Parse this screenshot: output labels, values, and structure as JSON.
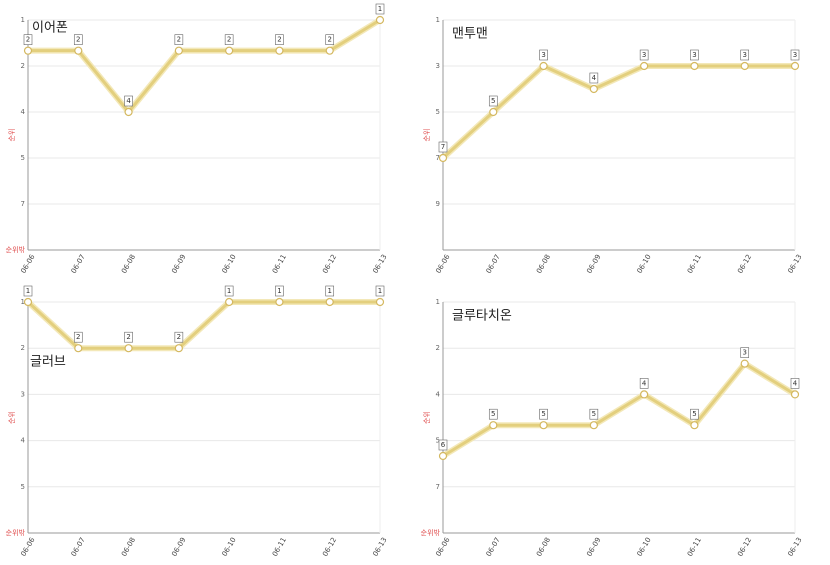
{
  "chart_data": [
    {
      "type": "line",
      "title": "이어폰",
      "ylabel": "순위",
      "y_inverted": true,
      "color": "#e3cf7e",
      "categories": [
        "06-06",
        "06-07",
        "06-08",
        "06-09",
        "06-10",
        "06-11",
        "06-12",
        "06-13"
      ],
      "values": [
        2,
        2,
        4,
        2,
        2,
        2,
        2,
        1
      ],
      "ylim": [
        1,
        8.5
      ],
      "yticks": [
        1,
        {
          "value": 2.5,
          "label": "2"
        },
        4,
        {
          "value": 5.5,
          "label": "5"
        },
        7,
        {
          "value": 8.5,
          "label": "순위밖"
        }
      ]
    },
    {
      "type": "line",
      "title": "맨투맨",
      "ylabel": "순위",
      "y_inverted": true,
      "color": "#e3cf7e",
      "categories": [
        "06-06",
        "06-07",
        "06-08",
        "06-09",
        "06-10",
        "06-11",
        "06-12",
        "06-13"
      ],
      "values": [
        7,
        5,
        3,
        4,
        3,
        3,
        3,
        3
      ],
      "ylim": [
        1,
        11
      ],
      "yticks": [
        1,
        3,
        5,
        7,
        9
      ]
    },
    {
      "type": "line",
      "title": "글러브",
      "ylabel": "순위",
      "y_inverted": true,
      "color": "#e3cf7e",
      "categories": [
        "06-06",
        "06-07",
        "06-08",
        "06-09",
        "06-10",
        "06-11",
        "06-12",
        "06-13"
      ],
      "values": [
        1,
        2,
        2,
        2,
        1,
        1,
        1,
        1
      ],
      "ylim": [
        1,
        6
      ],
      "yticks": [
        1,
        2,
        3,
        4,
        5,
        {
          "value": 6,
          "label": "순위밖"
        }
      ]
    },
    {
      "type": "line",
      "title": "글루타치온",
      "ylabel": "순위",
      "y_inverted": true,
      "color": "#e3cf7e",
      "categories": [
        "06-06",
        "06-07",
        "06-08",
        "06-09",
        "06-10",
        "06-11",
        "06-12",
        "06-13"
      ],
      "values": [
        6,
        5,
        5,
        5,
        4,
        5,
        3,
        4
      ],
      "ylim": [
        1,
        8.5
      ],
      "yticks": [
        1,
        {
          "value": 2.5,
          "label": "2"
        },
        4,
        {
          "value": 5.5,
          "label": "5"
        },
        7,
        {
          "value": 8.5,
          "label": "순위밖"
        }
      ]
    }
  ]
}
